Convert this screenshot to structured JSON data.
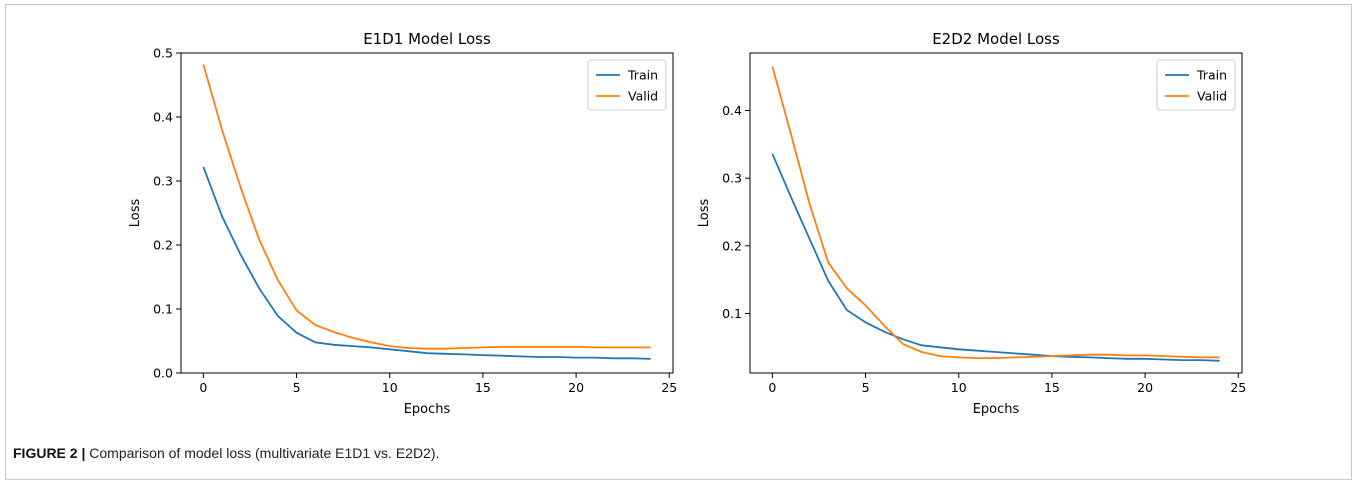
{
  "caption": {
    "label": "FIGURE 2 |",
    "text": "Comparison of model loss (multivariate E1D1 vs. E2D2)."
  },
  "colors": {
    "train": "#1f77b4",
    "valid": "#ff7f0e",
    "axis": "#000000"
  },
  "chart_data": [
    {
      "type": "line",
      "title": "E1D1 Model Loss",
      "xlabel": "Epochs",
      "ylabel": "Loss",
      "xlim": [
        -1.2,
        25.2
      ],
      "ylim": [
        0.0,
        0.5
      ],
      "xticks": [
        0,
        5,
        10,
        15,
        20,
        25
      ],
      "yticks": [
        0.0,
        0.1,
        0.2,
        0.3,
        0.4,
        0.5
      ],
      "ytick_labels": [
        "0.0",
        "0.1",
        "0.2",
        "0.3",
        "0.4",
        "0.5"
      ],
      "grid": false,
      "legend": "top-right",
      "x": [
        0,
        1,
        2,
        3,
        4,
        5,
        6,
        7,
        8,
        9,
        10,
        11,
        12,
        13,
        14,
        15,
        16,
        17,
        18,
        19,
        20,
        21,
        22,
        23,
        24
      ],
      "series": [
        {
          "name": "Train",
          "color": "#1f77b4",
          "values": [
            0.322,
            0.245,
            0.185,
            0.132,
            0.089,
            0.063,
            0.048,
            0.044,
            0.042,
            0.04,
            0.037,
            0.034,
            0.031,
            0.03,
            0.029,
            0.028,
            0.027,
            0.026,
            0.025,
            0.025,
            0.024,
            0.024,
            0.023,
            0.023,
            0.022
          ]
        },
        {
          "name": "Valid",
          "color": "#ff7f0e",
          "values": [
            0.482,
            0.38,
            0.29,
            0.208,
            0.145,
            0.098,
            0.075,
            0.064,
            0.055,
            0.048,
            0.042,
            0.039,
            0.038,
            0.038,
            0.039,
            0.04,
            0.041,
            0.041,
            0.041,
            0.041,
            0.041,
            0.04,
            0.04,
            0.04,
            0.04
          ]
        }
      ]
    },
    {
      "type": "line",
      "title": "E2D2 Model Loss",
      "xlabel": "Epochs",
      "ylabel": "Loss",
      "xlim": [
        -1.2,
        25.2
      ],
      "ylim": [
        0.012,
        0.485
      ],
      "xticks": [
        0,
        5,
        10,
        15,
        20,
        25
      ],
      "yticks": [
        0.1,
        0.2,
        0.3,
        0.4
      ],
      "ytick_labels": [
        "0.1",
        "0.2",
        "0.3",
        "0.4"
      ],
      "grid": false,
      "legend": "top-right",
      "x": [
        0,
        1,
        2,
        3,
        4,
        5,
        6,
        7,
        8,
        9,
        10,
        11,
        12,
        13,
        14,
        15,
        16,
        17,
        18,
        19,
        20,
        21,
        22,
        23,
        24
      ],
      "series": [
        {
          "name": "Train",
          "color": "#1f77b4",
          "values": [
            0.336,
            0.272,
            0.21,
            0.148,
            0.105,
            0.087,
            0.073,
            0.062,
            0.053,
            0.05,
            0.047,
            0.045,
            0.043,
            0.041,
            0.039,
            0.037,
            0.036,
            0.035,
            0.034,
            0.033,
            0.033,
            0.032,
            0.031,
            0.031,
            0.03
          ]
        },
        {
          "name": "Valid",
          "color": "#ff7f0e",
          "values": [
            0.465,
            0.365,
            0.262,
            0.175,
            0.137,
            0.112,
            0.082,
            0.055,
            0.043,
            0.037,
            0.035,
            0.034,
            0.034,
            0.035,
            0.036,
            0.037,
            0.038,
            0.039,
            0.039,
            0.038,
            0.038,
            0.037,
            0.036,
            0.035,
            0.035
          ]
        }
      ]
    }
  ]
}
